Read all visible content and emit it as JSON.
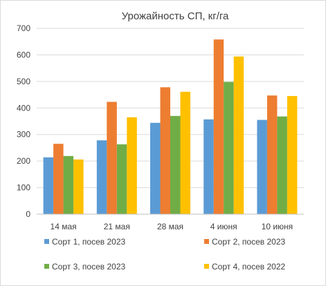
{
  "chart_data": {
    "type": "bar",
    "title": "Урожайность СП, кг/га",
    "categories": [
      "14 мая",
      "21 мая",
      "28 мая",
      "4 июня",
      "10 июня"
    ],
    "series": [
      {
        "name": "Сорт 1, посев 2023",
        "color": "#5b9bd5",
        "values": [
          214,
          278,
          344,
          357,
          355
        ]
      },
      {
        "name": "Сорт 2, посев 2023",
        "color": "#ed7d31",
        "values": [
          265,
          423,
          478,
          658,
          447
        ]
      },
      {
        "name": "Сорт 3, посев 2023",
        "color": "#70ad47",
        "values": [
          219,
          263,
          370,
          498,
          368
        ]
      },
      {
        "name": "Сорт 4, посев 2022",
        "color": "#ffc000",
        "values": [
          206,
          365,
          461,
          594,
          445
        ]
      }
    ],
    "ylim": [
      0,
      700
    ],
    "yticks": [
      0,
      100,
      200,
      300,
      400,
      500,
      600,
      700
    ],
    "grid": true,
    "legend_position": "bottom"
  }
}
